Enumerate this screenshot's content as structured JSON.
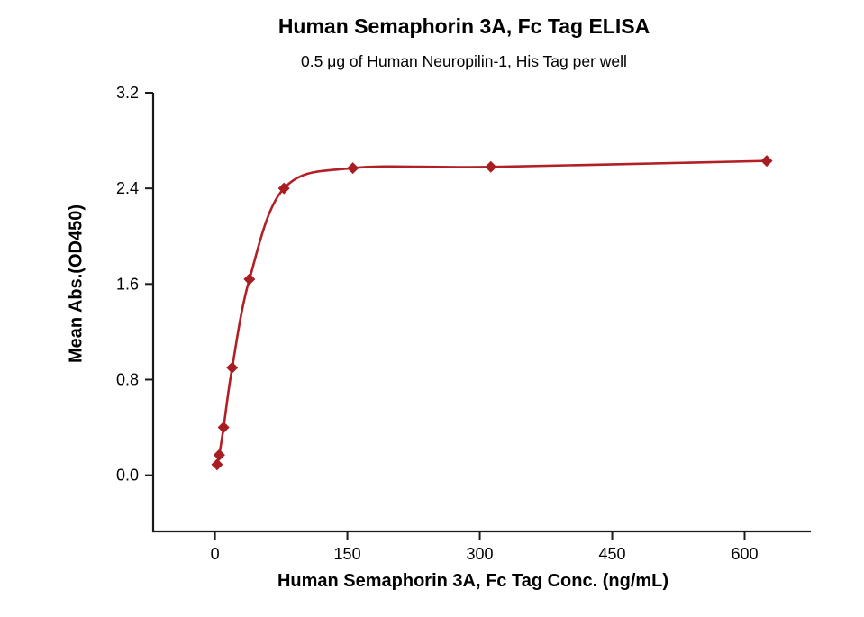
{
  "chart": {
    "title": "Human Semaphorin 3A, Fc Tag ELISA",
    "subtitle": "0.5 μg of Human Neuropilin-1, His Tag per well",
    "xlabel": "Human Semaphorin 3A, Fc Tag Conc. (ng/mL)",
    "ylabel": "Mean Abs.(OD450)"
  },
  "chart_data": {
    "type": "scatter",
    "title": "Human Semaphorin 3A, Fc Tag ELISA",
    "subtitle": "0.5 μg of Human Neuropilin-1, His Tag per well",
    "xlabel": "Human Semaphorin 3A, Fc Tag Conc. (ng/mL)",
    "ylabel": "Mean Abs.(OD450)",
    "x": [
      2.44,
      4.88,
      9.77,
      19.53,
      39.06,
      78.13,
      156.25,
      312.5,
      625
    ],
    "y": [
      0.09,
      0.17,
      0.4,
      0.9,
      1.64,
      2.4,
      2.57,
      2.58,
      2.63
    ],
    "x_ticks": [
      0,
      150,
      300,
      450,
      600
    ],
    "x_tick_labels": [
      "0",
      "150",
      "300",
      "450",
      "600"
    ],
    "y_ticks": [
      0,
      0.8,
      1.6,
      2.4,
      3.2
    ],
    "y_tick_labels": [
      "0.0",
      "0.8",
      "1.6",
      "2.4",
      "3.2"
    ],
    "x_range": [
      -70,
      675
    ],
    "y_range": [
      -0.47,
      3.2
    ],
    "grid": false,
    "legend": "none",
    "marker": "diamond",
    "line_color": "#b22025",
    "marker_color": "#a81d22",
    "axis_color": "#1a1a1a"
  }
}
